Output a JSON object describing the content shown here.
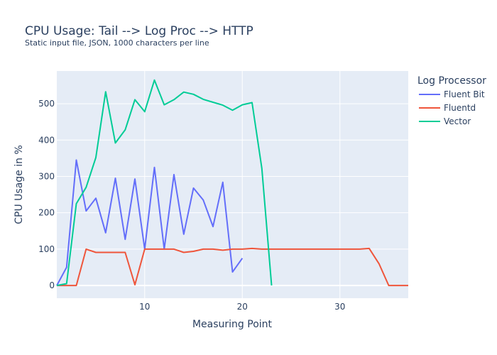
{
  "chart_data": {
    "type": "line",
    "title": "CPU Usage: Tail --> Log Proc --> HTTP",
    "subtitle": "Static input file, JSON, 1000 characters per line",
    "xlabel": "Measuring Point",
    "ylabel": "CPU Usage in %",
    "xlim": [
      1,
      37
    ],
    "ylim": [
      -35,
      590
    ],
    "xticks": [
      10,
      20,
      30
    ],
    "yticks": [
      0,
      100,
      200,
      300,
      400,
      500
    ],
    "grid": true,
    "legend_title": "Log Processor",
    "legend_position": "top-right",
    "series": [
      {
        "name": "Fluent Bit",
        "color": "#636efa",
        "x": [
          1,
          2,
          3,
          4,
          5,
          6,
          7,
          8,
          9,
          10,
          11,
          12,
          13,
          14,
          15,
          16,
          17,
          18,
          19,
          20
        ],
        "y": [
          0,
          50,
          345,
          205,
          240,
          145,
          295,
          127,
          293,
          100,
          325,
          100,
          305,
          141,
          268,
          235,
          162,
          284,
          37,
          75
        ]
      },
      {
        "name": "Fluentd",
        "color": "#ef553b",
        "x": [
          1,
          2,
          3,
          4,
          5,
          6,
          7,
          8,
          9,
          10,
          11,
          12,
          13,
          14,
          15,
          16,
          17,
          18,
          19,
          20,
          21,
          22,
          23,
          24,
          25,
          26,
          27,
          28,
          29,
          30,
          31,
          32,
          33,
          34,
          35,
          36,
          37
        ],
        "y": [
          0,
          0,
          0,
          100,
          91,
          91,
          91,
          91,
          2,
          100,
          100,
          100,
          100,
          91,
          94,
          100,
          100,
          97,
          100,
          100,
          102,
          100,
          100,
          100,
          100,
          100,
          100,
          100,
          100,
          100,
          100,
          100,
          102,
          60,
          0,
          0,
          0
        ]
      },
      {
        "name": "Vector",
        "color": "#00cc96",
        "x": [
          1,
          2,
          3,
          4,
          5,
          6,
          7,
          8,
          9,
          10,
          11,
          12,
          13,
          14,
          15,
          16,
          17,
          18,
          19,
          20,
          21,
          22,
          23
        ],
        "y": [
          0,
          5,
          225,
          270,
          352,
          533,
          392,
          428,
          511,
          478,
          565,
          497,
          511,
          532,
          526,
          512,
          504,
          496,
          482,
          497,
          503,
          322,
          0
        ]
      }
    ]
  }
}
